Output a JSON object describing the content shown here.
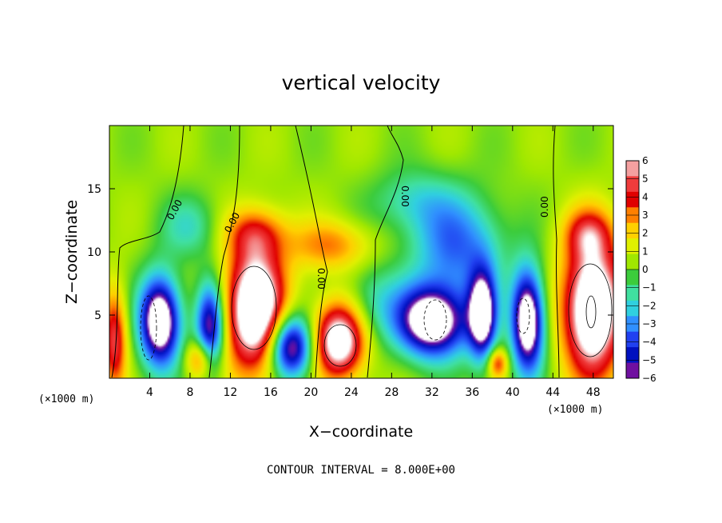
{
  "chart_data": {
    "type": "heatmap",
    "title": "vertical velocity",
    "xlabel": "X−coordinate",
    "ylabel": "Z−coordinate",
    "x_unit": "(×1000 m)",
    "y_unit": "(×1000 m)",
    "xlim": [
      0,
      50
    ],
    "ylim": [
      0,
      20
    ],
    "x_ticks": [
      4,
      8,
      12,
      16,
      20,
      24,
      28,
      32,
      36,
      40,
      44,
      48
    ],
    "y_ticks": [
      5,
      10,
      15
    ],
    "colorbar": {
      "levels": [
        6,
        5,
        4,
        3,
        2,
        1,
        0,
        -1,
        -2,
        -3,
        -4,
        -5,
        -6
      ],
      "labels": [
        "6",
        "5",
        "4",
        "3",
        "2",
        "1",
        "0",
        "−1",
        "−2",
        "−3",
        "−4",
        "−5",
        "−6"
      ],
      "colors": [
        "#f4a0a0",
        "#f03c3c",
        "#e00000",
        "#ff8000",
        "#ffd000",
        "#e0f000",
        "#a0e800",
        "#3ccc3c",
        "#40e0a0",
        "#30d0e0",
        "#3090ff",
        "#2040f0",
        "#0010c0",
        "#7010a0"
      ]
    },
    "contour_labels": [
      "0.00",
      "0.00",
      "0.00",
      "0.00",
      "0.00"
    ],
    "contour_interval_text": "CONTOUR INTERVAL = 8.000E+00",
    "plumes": [
      {
        "x": 14.5,
        "z": 5.5,
        "w": 9,
        "sx": 3.0,
        "sz": 5.0
      },
      {
        "x": 22.8,
        "z": 3.0,
        "w": 8,
        "sx": 2.6,
        "sz": 3.0
      },
      {
        "x": 48.0,
        "z": 5.5,
        "w": 9,
        "sx": 3.0,
        "sz": 5.5
      },
      {
        "x": 9.0,
        "z": 1.5,
        "w": 4,
        "sx": 1.4,
        "sz": 1.6
      },
      {
        "x": 38.5,
        "z": 1.2,
        "w": 4,
        "sx": 1.0,
        "sz": 1.2
      },
      {
        "x": 0.5,
        "z": 3.0,
        "w": 5,
        "sx": 1.2,
        "sz": 4.0
      },
      {
        "x": 22.0,
        "z": 10.5,
        "w": 3,
        "sx": 4.0,
        "sz": 2.0
      },
      {
        "x": 14.5,
        "z": 11.5,
        "w": 3,
        "sx": 3.0,
        "sz": 2.0
      },
      {
        "x": 47.5,
        "z": 11.5,
        "w": 3,
        "sx": 2.5,
        "sz": 2.0
      },
      {
        "x": 5.0,
        "z": 4.5,
        "w": -9,
        "sx": 2.0,
        "sz": 3.5
      },
      {
        "x": 10.0,
        "z": 4.0,
        "w": -7,
        "sx": 1.4,
        "sz": 3.5
      },
      {
        "x": 18.0,
        "z": 2.5,
        "w": -8,
        "sx": 2.2,
        "sz": 2.5
      },
      {
        "x": 32.0,
        "z": 4.5,
        "w": -9,
        "sx": 3.5,
        "sz": 2.8
      },
      {
        "x": 37.0,
        "z": 5.0,
        "w": -8,
        "sx": 1.4,
        "sz": 3.5
      },
      {
        "x": 41.5,
        "z": 4.5,
        "w": -9,
        "sx": 1.6,
        "sz": 4.0
      },
      {
        "x": 34.5,
        "z": 10.5,
        "w": -4,
        "sx": 4.5,
        "sz": 4.0
      },
      {
        "x": 8.0,
        "z": 12.0,
        "w": -2,
        "sx": 3.0,
        "sz": 2.5
      },
      {
        "x": 30.0,
        "z": 14.0,
        "w": -2,
        "sx": 4.0,
        "sz": 2.5
      },
      {
        "x": 26.0,
        "z": 6.0,
        "w": -2,
        "sx": 3.0,
        "sz": 3.0
      }
    ]
  }
}
